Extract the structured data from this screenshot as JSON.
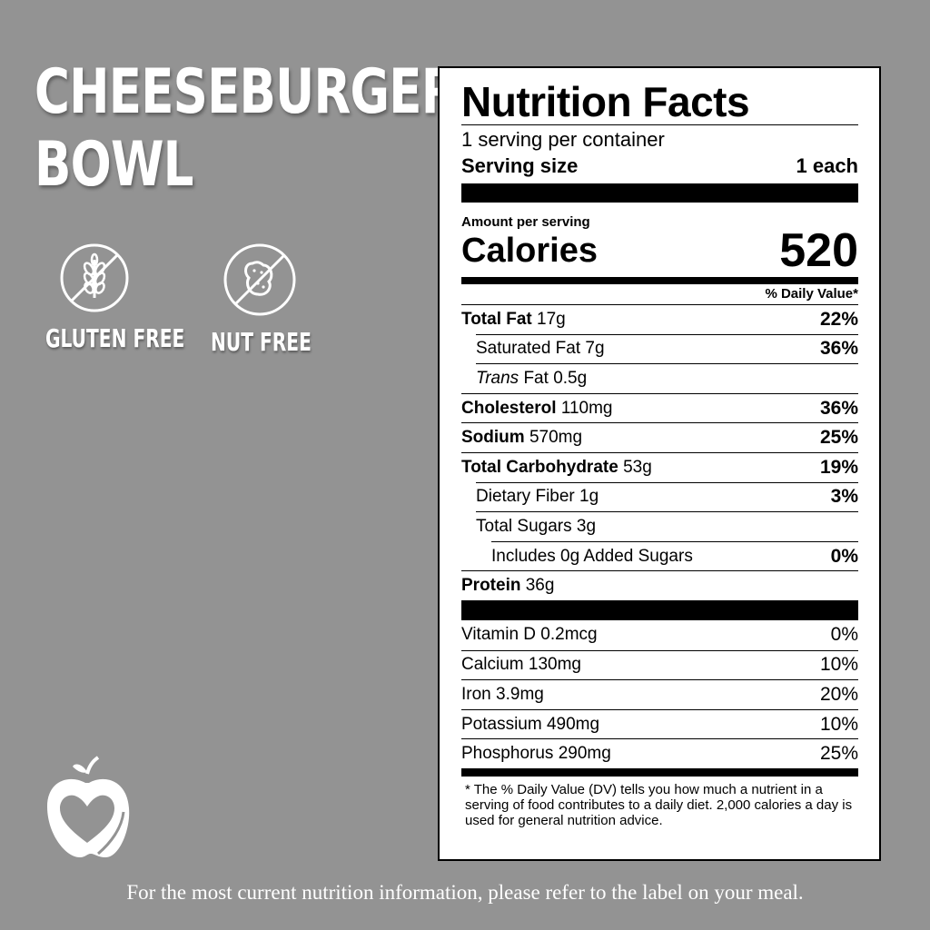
{
  "product": {
    "title_line1": "CHEESEBURGER",
    "title_line2": "BOWL"
  },
  "badges": [
    {
      "icon": "wheat-crossed-icon",
      "label": "GLUTEN FREE"
    },
    {
      "icon": "peanut-crossed-icon",
      "label": "NUT FREE"
    }
  ],
  "label": {
    "title": "Nutrition Facts",
    "servings": "1 serving per container",
    "serving_size_label": "Serving size",
    "serving_size_value": "1 each",
    "amount_per_serving": "Amount per serving",
    "calories_label": "Calories",
    "calories_value": "520",
    "dv_header": "% Daily Value*",
    "nutrients": [
      {
        "name": "Total Fat",
        "amount": "17g",
        "dv": "22%"
      },
      {
        "name": "Saturated Fat",
        "amount": "7g",
        "dv": "36%"
      },
      {
        "name": "Trans",
        "suffix": "Fat",
        "amount": "0.5g",
        "dv": ""
      },
      {
        "name": "Cholesterol",
        "amount": "110mg",
        "dv": "36%"
      },
      {
        "name": "Sodium",
        "amount": "570mg",
        "dv": "25%"
      },
      {
        "name": "Total Carbohydrate",
        "amount": "53g",
        "dv": "19%"
      },
      {
        "name": "Dietary Fiber",
        "amount": "1g",
        "dv": "3%"
      },
      {
        "name": "Total Sugars",
        "amount": "3g",
        "dv": ""
      },
      {
        "name": "Includes 0g Added Sugars",
        "amount": "",
        "dv": "0%"
      },
      {
        "name": "Protein",
        "amount": "36g",
        "dv": ""
      }
    ],
    "vitamins": [
      {
        "name": "Vitamin D",
        "amount": "0.2mcg",
        "dv": "0%"
      },
      {
        "name": "Calcium",
        "amount": "130mg",
        "dv": "10%"
      },
      {
        "name": "Iron",
        "amount": "3.9mg",
        "dv": "20%"
      },
      {
        "name": "Potassium",
        "amount": "490mg",
        "dv": "10%"
      },
      {
        "name": "Phosphorus",
        "amount": "290mg",
        "dv": "25%"
      }
    ],
    "footnote": "* The % Daily Value (DV) tells you how much a nutrient in a serving of food contributes to a daily diet. 2,000 calories a day is used for general nutrition advice."
  },
  "logo_icon": "apple-heart-icon",
  "bottom_note": "For the most current nutrition information, please refer to the label on your meal."
}
